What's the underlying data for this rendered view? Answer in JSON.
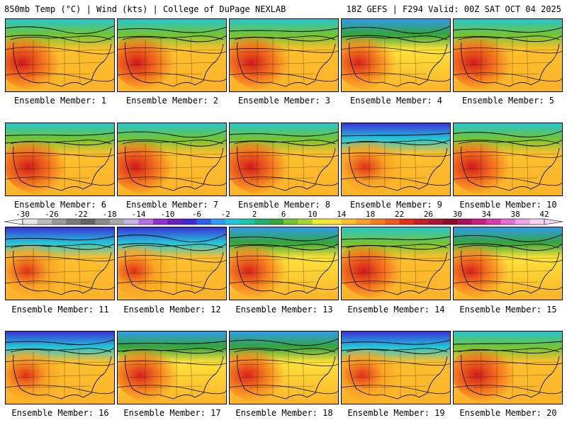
{
  "header": {
    "left": "850mb Temp (°C) | Wind (kts) | College of DuPage NEXLAB",
    "right": "18Z GEFS | F294 Valid: 00Z SAT OCT 04 2025"
  },
  "colorbar": {
    "ticks": [
      "-30",
      "-26",
      "-22",
      "-18",
      "-14",
      "-10",
      "-6",
      "-2",
      "2",
      "6",
      "10",
      "14",
      "18",
      "22",
      "26",
      "30",
      "34",
      "38",
      "42"
    ],
    "colors": [
      "#e6e6e6",
      "#bcbcbc",
      "#9a9a9a",
      "#7a7a7a",
      "#646464",
      "#8a8a8a",
      "#a8a8a8",
      "#c8b0e8",
      "#b070e0",
      "#9030d0",
      "#6a1fc0",
      "#3c2ad8",
      "#2f5ff0",
      "#2f9cf2",
      "#22c6d8",
      "#19c8a8",
      "#22b070",
      "#35a43c",
      "#73c433",
      "#a6d630",
      "#e6ee2a",
      "#fde23a",
      "#fcc02e",
      "#f9a024",
      "#f57e1e",
      "#ee5b1a",
      "#e03018",
      "#c81e28",
      "#aa1430",
      "#8a0c28",
      "#aa1060",
      "#c8207e",
      "#d63ca8",
      "#e070d0",
      "#eca6e6",
      "#f6d2f2"
    ]
  },
  "members": [
    {
      "label": "Ensemble Member: 1",
      "theme": "warm"
    },
    {
      "label": "Ensemble Member: 2",
      "theme": "warm"
    },
    {
      "label": "Ensemble Member: 3",
      "theme": "warm"
    },
    {
      "label": "Ensemble Member: 4",
      "theme": "mixed"
    },
    {
      "label": "Ensemble Member: 5",
      "theme": "warm"
    },
    {
      "label": "Ensemble Member: 6",
      "theme": "warm"
    },
    {
      "label": "Ensemble Member: 7",
      "theme": "warm"
    },
    {
      "label": "Ensemble Member: 8",
      "theme": "warm"
    },
    {
      "label": "Ensemble Member: 9",
      "theme": "cold"
    },
    {
      "label": "Ensemble Member: 10",
      "theme": "warm"
    },
    {
      "label": "Ensemble Member: 11",
      "theme": "cold"
    },
    {
      "label": "Ensemble Member: 12",
      "theme": "cold"
    },
    {
      "label": "Ensemble Member: 13",
      "theme": "mixed"
    },
    {
      "label": "Ensemble Member: 14",
      "theme": "warm"
    },
    {
      "label": "Ensemble Member: 15",
      "theme": "mixed"
    },
    {
      "label": "Ensemble Member: 16",
      "theme": "cold"
    },
    {
      "label": "Ensemble Member: 17",
      "theme": "mixed"
    },
    {
      "label": "Ensemble Member: 18",
      "theme": "mixed"
    },
    {
      "label": "Ensemble Member: 19",
      "theme": "cold"
    },
    {
      "label": "Ensemble Member: 20",
      "theme": "warm"
    }
  ]
}
